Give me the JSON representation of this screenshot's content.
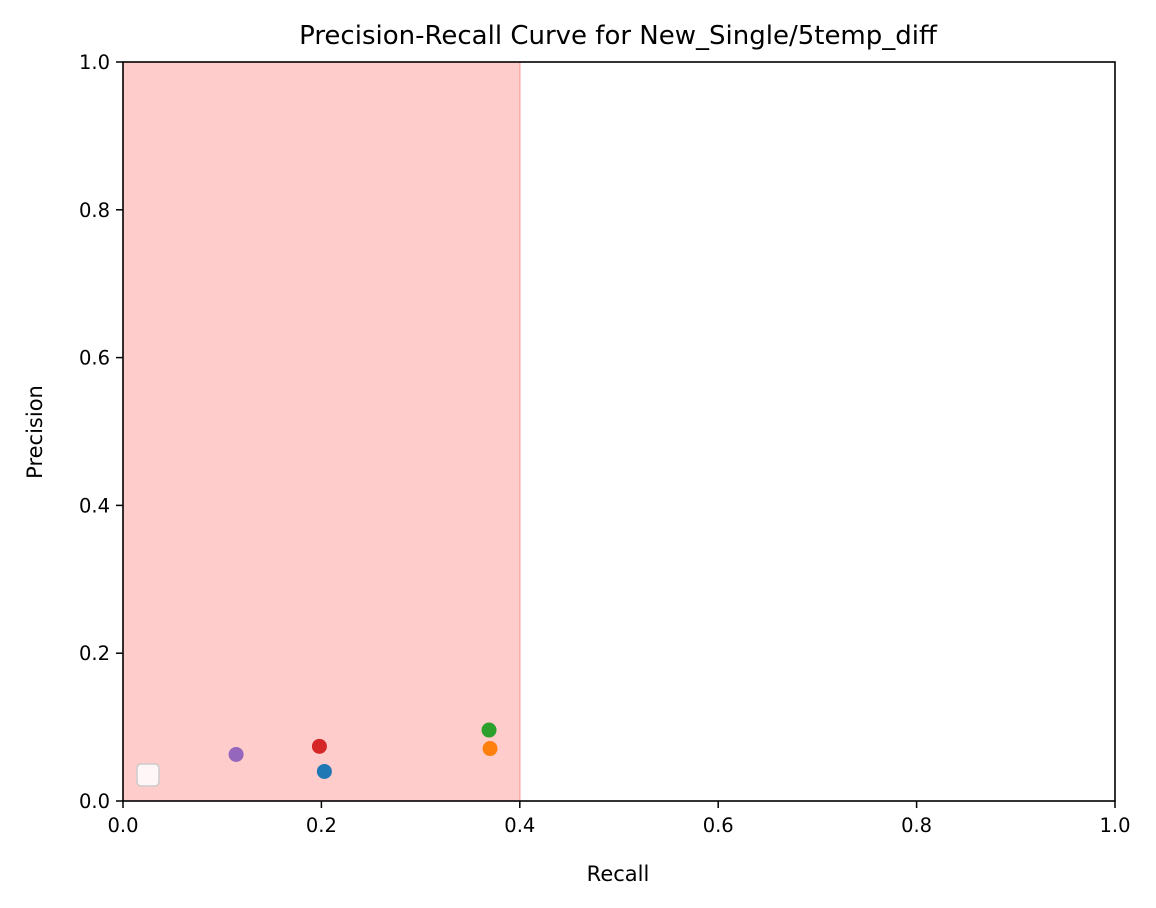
{
  "chart_data": {
    "type": "scatter",
    "title": "Precision-Recall Curve for New_Single/5temp_diff",
    "xlabel": "Recall",
    "ylabel": "Precision",
    "xlim": [
      0.0,
      1.0
    ],
    "ylim": [
      0.0,
      1.0
    ],
    "xticks": [
      "0.0",
      "0.2",
      "0.4",
      "0.6",
      "0.8",
      "1.0"
    ],
    "yticks": [
      "0.0",
      "0.2",
      "0.4",
      "0.6",
      "0.8",
      "1.0"
    ],
    "grid": false,
    "shaded_region": {
      "x": [
        0.0,
        0.4
      ],
      "color": "#ffcccc"
    },
    "legend": {
      "placement": "lower-left",
      "entries": []
    },
    "points": [
      {
        "x": 0.203,
        "y": 0.04,
        "color": "#1f77b4"
      },
      {
        "x": 0.37,
        "y": 0.071,
        "color": "#ff7f0e"
      },
      {
        "x": 0.369,
        "y": 0.096,
        "color": "#2ca02c"
      },
      {
        "x": 0.198,
        "y": 0.074,
        "color": "#d62728"
      },
      {
        "x": 0.114,
        "y": 0.063,
        "color": "#9467bd"
      }
    ]
  }
}
